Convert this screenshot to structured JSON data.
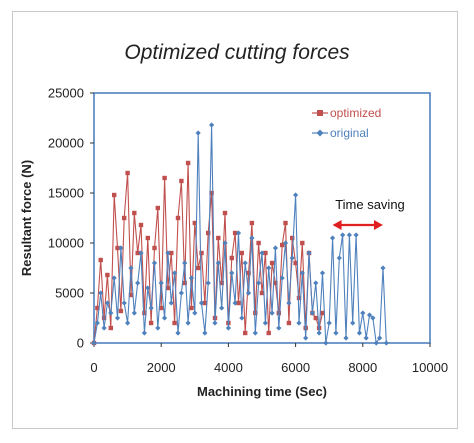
{
  "chart_data": {
    "type": "line",
    "title": "Optimized cutting forces",
    "xlabel": "Machining time (Sec)",
    "ylabel": "Resultant force (N)",
    "xlim": [
      0,
      10000
    ],
    "ylim": [
      0,
      25000
    ],
    "xticks": [
      0,
      2000,
      4000,
      6000,
      8000,
      10000
    ],
    "yticks": [
      0,
      5000,
      10000,
      15000,
      20000,
      25000
    ],
    "grid": false,
    "legend_position": "top-right",
    "annotation": {
      "text": "Time saving",
      "arrow_from": 7100,
      "arrow_to": 8600,
      "arrow_y": 11800
    },
    "colors": {
      "optimized": "#c0504d",
      "original": "#4f81bd",
      "plot_border": "#4f81bd",
      "arrow": "#e02020"
    },
    "series": [
      {
        "name": "optimized",
        "marker": "square",
        "x": [
          0,
          100,
          200,
          300,
          400,
          500,
          600,
          700,
          800,
          900,
          1000,
          1100,
          1200,
          1300,
          1400,
          1500,
          1600,
          1700,
          1800,
          1900,
          2000,
          2100,
          2200,
          2300,
          2400,
          2500,
          2600,
          2700,
          2800,
          2900,
          3000,
          3100,
          3200,
          3300,
          3400,
          3500,
          3600,
          3700,
          3800,
          3900,
          4000,
          4100,
          4200,
          4300,
          4400,
          4500,
          4600,
          4700,
          4800,
          4900,
          5000,
          5100,
          5200,
          5300,
          5400,
          5500,
          5600,
          5700,
          5800,
          5900,
          6000,
          6100,
          6200,
          6300,
          6400,
          6500,
          6600,
          6700,
          6800
        ],
        "values": [
          0,
          3500,
          8300,
          2500,
          6800,
          1500,
          14800,
          9500,
          3200,
          12500,
          17000,
          4800,
          13000,
          9000,
          11800,
          3000,
          10500,
          2000,
          9500,
          13500,
          3500,
          16500,
          5500,
          9000,
          2000,
          12500,
          16200,
          6000,
          18000,
          3500,
          12000,
          7500,
          9000,
          4000,
          11000,
          15000,
          2500,
          10500,
          6000,
          13000,
          2000,
          8500,
          11000,
          4000,
          9000,
          1000,
          7000,
          12000,
          3000,
          10000,
          5000,
          9000,
          1000,
          8000,
          6000,
          3000,
          9800,
          12000,
          2000,
          10500,
          8000,
          4500,
          10000,
          1500,
          9000,
          3000,
          2500,
          1500,
          3000
        ]
      },
      {
        "name": "original",
        "marker": "diamond",
        "x": [
          0,
          100,
          200,
          300,
          400,
          500,
          600,
          700,
          800,
          900,
          1000,
          1100,
          1200,
          1300,
          1400,
          1500,
          1600,
          1700,
          1800,
          1900,
          2000,
          2100,
          2200,
          2300,
          2400,
          2500,
          2600,
          2700,
          2800,
          2900,
          3000,
          3100,
          3200,
          3300,
          3400,
          3500,
          3600,
          3700,
          3800,
          3900,
          4000,
          4100,
          4200,
          4300,
          4400,
          4500,
          4600,
          4700,
          4800,
          4900,
          5000,
          5100,
          5200,
          5300,
          5400,
          5500,
          5600,
          5700,
          5800,
          5900,
          6000,
          6100,
          6200,
          6300,
          6400,
          6500,
          6600,
          6700,
          6800,
          6900,
          7000,
          7100,
          7200,
          7300,
          7400,
          7500,
          7600,
          7700,
          7800,
          7900,
          8000,
          8100,
          8200,
          8300,
          8400,
          8500,
          8600,
          8700
        ],
        "values": [
          0,
          2000,
          5000,
          1500,
          4000,
          3000,
          6500,
          2500,
          9500,
          4000,
          2000,
          7500,
          3000,
          6000,
          9000,
          1000,
          5500,
          3500,
          8000,
          1500,
          6000,
          2500,
          9000,
          4000,
          7000,
          1000,
          5000,
          8000,
          2000,
          6500,
          3000,
          21000,
          4000,
          1000,
          6000,
          21800,
          2000,
          8000,
          3500,
          10000,
          1500,
          7000,
          4000,
          11000,
          2500,
          8000,
          5000,
          10500,
          1000,
          6000,
          9000,
          2000,
          7500,
          3000,
          9500,
          1500,
          6500,
          10000,
          4000,
          8500,
          14800,
          2000,
          7000,
          500,
          9000,
          3000,
          6000,
          1000,
          7000,
          0,
          2000,
          10500,
          1000,
          8500,
          10800,
          500,
          10800,
          2000,
          10800,
          1000,
          3000,
          500,
          2800,
          2500,
          0,
          500,
          7500,
          0
        ]
      }
    ]
  }
}
